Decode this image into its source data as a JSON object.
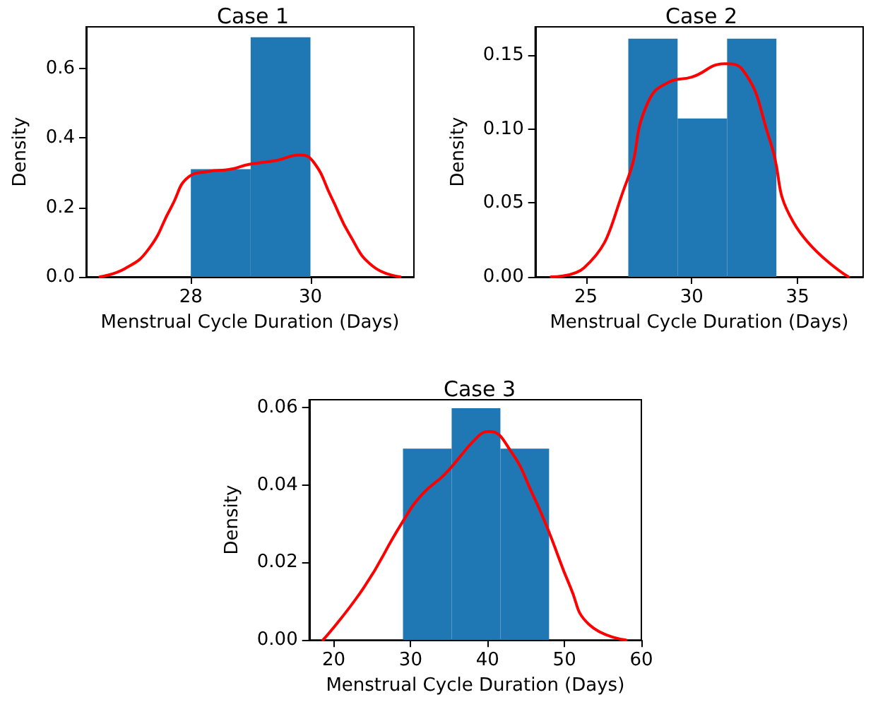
{
  "chart_data": [
    {
      "type": "histogram",
      "title": "Case 1",
      "xlabel": "Menstrual Cycle Duration (Days)",
      "ylabel": "Density",
      "xlim": [
        26.25,
        31.73
      ],
      "ylim": [
        0,
        0.72
      ],
      "xticks": [
        28,
        30
      ],
      "yticks": [
        {
          "value": 0,
          "label": "0.0"
        },
        {
          "value": 0.2,
          "label": "0.2"
        },
        {
          "value": 0.4,
          "label": "0.4"
        },
        {
          "value": 0.6,
          "label": "0.6"
        }
      ],
      "grid": false,
      "marker": "none",
      "line_style": "solid",
      "series": [
        {
          "color": "#1f77b4",
          "bins": [
            28,
            29,
            30
          ],
          "values": [
            0.31,
            0.69
          ]
        },
        {
          "type": "line",
          "color": "#ff0000",
          "x": [
            26.48,
            26.9,
            27.29,
            27.67,
            27.98,
            28.28,
            28.67,
            28.97,
            29.43,
            29.82,
            30.05,
            30.35,
            30.66,
            31.04,
            31.5
          ],
          "values": [
            0,
            0.024,
            0.079,
            0.2,
            0.29,
            0.303,
            0.31,
            0.324,
            0.335,
            0.351,
            0.331,
            0.229,
            0.12,
            0.031,
            0
          ]
        }
      ]
    },
    {
      "type": "histogram",
      "title": "Case 2",
      "xlabel": "Menstrual Cycle Duration (Days)",
      "ylabel": "Density",
      "xlim": [
        22.6,
        38.1
      ],
      "ylim": [
        0,
        0.169
      ],
      "xticks": [
        25,
        30,
        35
      ],
      "yticks": [
        {
          "value": 0,
          "label": "0.00"
        },
        {
          "value": 0.05,
          "label": "0.05"
        },
        {
          "value": 0.1,
          "label": "0.10"
        },
        {
          "value": 0.15,
          "label": "0.15"
        }
      ],
      "grid": false,
      "marker": "none",
      "line_style": "solid",
      "series": [
        {
          "color": "#1f77b4",
          "bins": [
            27,
            29.33,
            31.67,
            34
          ],
          "values": [
            0.161,
            0.107,
            0.161
          ]
        },
        {
          "type": "line",
          "color": "#ff0000",
          "x": [
            23.35,
            24.9,
            26.94,
            27.9,
            28.98,
            30,
            31.56,
            32.4,
            33.7,
            34.8,
            37.4
          ],
          "values": [
            0,
            0.006,
            0.065,
            0.117,
            0.132,
            0.135,
            0.144,
            0.14,
            0.092,
            0.037,
            0
          ]
        }
      ]
    },
    {
      "type": "histogram",
      "title": "Case 3",
      "xlabel": "Menstrual Cycle Duration (Days)",
      "ylabel": "Density",
      "xlim": [
        16.8,
        60
      ],
      "ylim": [
        0,
        0.062
      ],
      "xticks": [
        20,
        30,
        40,
        50,
        60
      ],
      "yticks": [
        {
          "value": 0,
          "label": "0.00"
        },
        {
          "value": 0.02,
          "label": "0.02"
        },
        {
          "value": 0.04,
          "label": "0.04"
        },
        {
          "value": 0.06,
          "label": "0.06"
        }
      ],
      "grid": false,
      "marker": "none",
      "line_style": "solid",
      "series": [
        {
          "color": "#1f77b4",
          "bins": [
            29,
            35.33,
            41.67,
            48
          ],
          "values": [
            0.0494,
            0.0598,
            0.0494
          ]
        },
        {
          "type": "line",
          "color": "#ff0000",
          "x": [
            18.6,
            23.9,
            28.8,
            31.5,
            34.5,
            38.7,
            40.2,
            43,
            46,
            47.8,
            50.8,
            53.2,
            58
          ],
          "values": [
            0,
            0.0135,
            0.03,
            0.0376,
            0.0429,
            0.0524,
            0.0538,
            0.0488,
            0.037,
            0.0288,
            0.0135,
            0.004,
            0
          ]
        }
      ]
    }
  ]
}
